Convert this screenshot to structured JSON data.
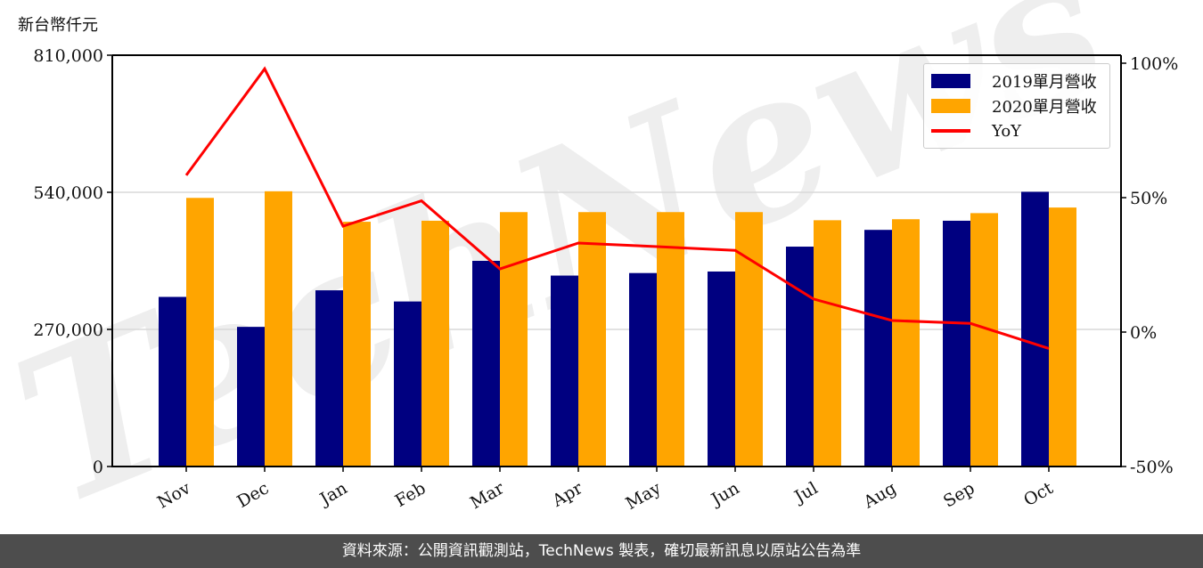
{
  "unit_label": "新台幣仟元",
  "footer": "資料來源：公開資訊觀測站，TechNews 製表，確切最新訊息以原站公告為準",
  "watermark": "TechNews",
  "colors": {
    "series_2019": "#000080",
    "series_2020": "#ffa500",
    "yoy": "#ff0000",
    "grid": "#d9d9d9",
    "footer_bg": "#4d4d4d"
  },
  "legend": {
    "items": [
      {
        "label": "2019單月營收"
      },
      {
        "label": "2020單月營收"
      },
      {
        "label": "YoY"
      }
    ]
  },
  "chart_data": {
    "type": "bar",
    "title": "",
    "xlabel": "",
    "ylabel": "新台幣仟元",
    "y2label": "YoY",
    "categories": [
      "Nov",
      "Dec",
      "Jan",
      "Feb",
      "Mar",
      "Apr",
      "May",
      "Jun",
      "Jul",
      "Aug",
      "Sep",
      "Oct"
    ],
    "series": [
      {
        "name": "2019單月營收",
        "type": "bar",
        "axis": "left",
        "values": [
          334000,
          275000,
          347000,
          325000,
          405000,
          376000,
          381000,
          384000,
          433000,
          466000,
          484000,
          541000
        ]
      },
      {
        "name": "2020單月營收",
        "type": "bar",
        "axis": "left",
        "values": [
          529000,
          542000,
          482000,
          484000,
          501000,
          501000,
          501000,
          501000,
          485000,
          487000,
          499000,
          510000
        ]
      },
      {
        "name": "YoY",
        "type": "line",
        "axis": "right",
        "unit": "%",
        "values": [
          58.3,
          97.9,
          39.4,
          48.8,
          23.5,
          33.1,
          31.8,
          30.4,
          12.3,
          4.3,
          3.2,
          -6.1
        ]
      }
    ],
    "ylim": [
      0,
      810000
    ],
    "yticks": [
      "0",
      "270,000",
      "540,000",
      "810,000"
    ],
    "y2lim": [
      -50,
      100
    ],
    "y2ticks": [
      "-50%",
      "0%",
      "50%",
      "100%"
    ],
    "grid": "horizontal",
    "legend_position": "upper right"
  }
}
